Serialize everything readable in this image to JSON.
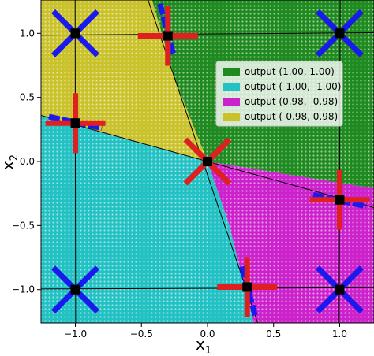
{
  "chart_data": {
    "type": "scatter",
    "title": "",
    "xlabel": "x",
    "xlabel_sub": "1",
    "ylabel": "x",
    "ylabel_sub": "2",
    "xlim": [
      -1.26,
      1.26
    ],
    "ylim": [
      -1.26,
      1.26
    ],
    "x_ticks": [
      -1.0,
      -0.5,
      0.0,
      0.5,
      1.0
    ],
    "x_tick_labels": [
      "−1.0",
      "−0.5",
      "0.0",
      "0.5",
      "1.0"
    ],
    "y_ticks": [
      -1.0,
      -0.5,
      0.0,
      0.5,
      1.0
    ],
    "y_tick_labels": [
      "−1.0",
      "−0.5",
      "0.0",
      "0.5",
      "1.0"
    ],
    "legend_position": "top-right",
    "regions": [
      {
        "name": "output (1.00, 1.00)",
        "color": "#1f8a1f",
        "polygon": [
          [
            -0.42,
            1.26
          ],
          [
            1.26,
            1.26
          ],
          [
            1.26,
            -0.21
          ],
          [
            0.0,
            0.0
          ],
          [
            -0.24,
            0.62
          ]
        ]
      },
      {
        "name": "output (-1.00, -1.00)",
        "color": "#22c1c3",
        "polygon": [
          [
            -1.26,
            0.36
          ],
          [
            0.0,
            0.0
          ],
          [
            0.16,
            -0.48
          ],
          [
            0.35,
            -1.26
          ],
          [
            -1.26,
            -1.26
          ]
        ]
      },
      {
        "name": "output (0.98, -0.98)",
        "color": "#cc22cc",
        "polygon": [
          [
            0.0,
            0.0
          ],
          [
            1.26,
            -0.21
          ],
          [
            1.26,
            -1.26
          ],
          [
            0.35,
            -1.26
          ],
          [
            0.16,
            -0.48
          ]
        ]
      },
      {
        "name": "output (-0.98, 0.98)",
        "color": "#c9c22a",
        "polygon": [
          [
            -1.26,
            1.26
          ],
          [
            -0.42,
            1.26
          ],
          [
            -0.24,
            0.62
          ],
          [
            0.0,
            0.0
          ],
          [
            -1.26,
            0.36
          ]
        ]
      }
    ],
    "boundary_lines": [
      {
        "from": [
          -0.45,
          1.26
        ],
        "to": [
          0.38,
          -1.26
        ]
      },
      {
        "from": [
          -1.26,
          0.36
        ],
        "to": [
          1.26,
          -0.36
        ]
      },
      {
        "from": [
          -1.26,
          0.985
        ],
        "to": [
          1.26,
          1.005
        ]
      },
      {
        "from": [
          -1.26,
          -0.995
        ],
        "to": [
          1.26,
          -0.985
        ]
      },
      {
        "from": [
          -0.998,
          -1.26
        ],
        "to": [
          -1.002,
          1.26
        ]
      },
      {
        "from": [
          0.996,
          -1.26
        ],
        "to": [
          1.004,
          1.26
        ]
      }
    ],
    "markers": [
      {
        "x": -1.0,
        "y": 1.0,
        "shape": "x",
        "color": "#1a1aee"
      },
      {
        "x": 1.0,
        "y": 1.0,
        "shape": "x",
        "color": "#1a1aee"
      },
      {
        "x": -1.0,
        "y": -1.0,
        "shape": "x",
        "color": "#1a1aee"
      },
      {
        "x": 1.0,
        "y": -1.0,
        "shape": "x",
        "color": "#1a1aee"
      },
      {
        "x": 0.0,
        "y": 0.0,
        "shape": "x",
        "color": "#e02020"
      },
      {
        "x": -0.3,
        "y": 0.98,
        "shape": "plus",
        "color": "#e02020"
      },
      {
        "x": -1.0,
        "y": 0.3,
        "shape": "plus",
        "color": "#e02020"
      },
      {
        "x": 1.0,
        "y": -0.3,
        "shape": "plus",
        "color": "#e02020"
      },
      {
        "x": 0.3,
        "y": -0.98,
        "shape": "plus",
        "color": "#e02020"
      }
    ],
    "blue_segments": [
      {
        "from": [
          -0.36,
          1.23
        ],
        "to": [
          -0.26,
          0.84
        ]
      },
      {
        "from": [
          -1.2,
          0.35
        ],
        "to": [
          -0.8,
          0.26
        ]
      },
      {
        "from": [
          0.8,
          -0.26
        ],
        "to": [
          1.2,
          -0.35
        ]
      },
      {
        "from": [
          0.26,
          -0.82
        ],
        "to": [
          0.36,
          -1.2
        ]
      }
    ],
    "square_points": [
      {
        "x": -1.0,
        "y": 1.0
      },
      {
        "x": 1.0,
        "y": 1.0
      },
      {
        "x": -1.0,
        "y": -1.0
      },
      {
        "x": 1.0,
        "y": -1.0
      },
      {
        "x": 0.0,
        "y": 0.0
      },
      {
        "x": -0.3,
        "y": 0.98
      },
      {
        "x": -1.0,
        "y": 0.3
      },
      {
        "x": 1.0,
        "y": -0.3
      },
      {
        "x": 0.3,
        "y": -0.98
      }
    ]
  }
}
